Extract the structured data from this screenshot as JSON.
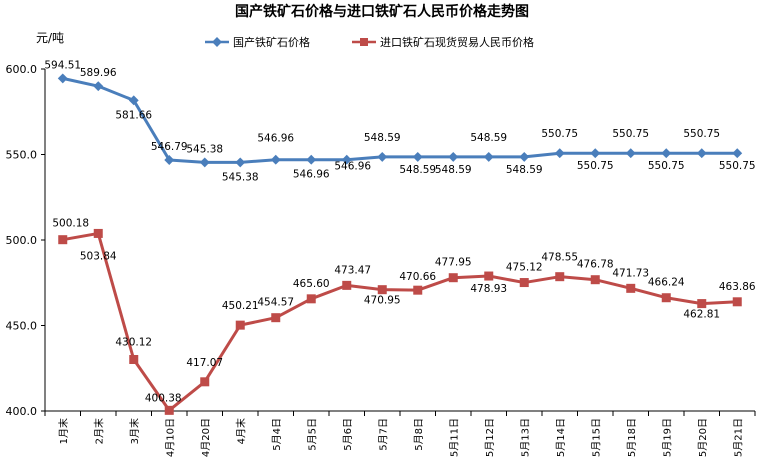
{
  "chart_data": {
    "type": "line",
    "title": "国产铁矿石价格与进口铁矿石人民币价格走势图",
    "ylabel": "元/吨",
    "ylim": [
      400,
      600
    ],
    "yticks": [
      "400.0",
      "450.0",
      "500.0",
      "550.0",
      "600.0"
    ],
    "grid": false,
    "legend_position": "top",
    "categories": [
      "1月末",
      "2月末",
      "3月末",
      "4月10日",
      "4月20日",
      "4月末",
      "5月4日",
      "5月5日",
      "5月6日",
      "5月7日",
      "5月8日",
      "5月11日",
      "5月12日",
      "5月13日",
      "5月14日",
      "5月15日",
      "5月18日",
      "5月19日",
      "5月20日",
      "5月21日"
    ],
    "series": [
      {
        "name": "国产铁矿石价格",
        "color": "#4a7ebb",
        "marker": "diamond",
        "values": [
          594.51,
          589.96,
          581.66,
          546.79,
          545.38,
          545.38,
          546.96,
          546.96,
          546.96,
          548.59,
          548.59,
          548.59,
          548.59,
          548.59,
          550.75,
          550.75,
          550.75,
          550.75,
          550.75,
          550.75
        ],
        "labels": [
          "594.51",
          "589.96",
          "581.66",
          "546.79",
          "545.38",
          "545.38",
          "546.96",
          "546.96",
          "546.96",
          "548.59",
          "548.59",
          "548.59",
          "548.59",
          "548.59",
          "550.75",
          "550.75",
          "550.75",
          "550.75",
          "550.75",
          "550.75"
        ]
      },
      {
        "name": "进口铁矿石现货贸易人民币价格",
        "color": "#be4b48",
        "marker": "square",
        "values": [
          500.18,
          503.84,
          430.12,
          400.38,
          417.07,
          450.21,
          454.57,
          465.6,
          473.47,
          470.95,
          470.66,
          477.95,
          478.93,
          475.12,
          478.55,
          476.78,
          471.73,
          466.24,
          462.81,
          463.86
        ],
        "labels": [
          "500.18",
          "503.84",
          "430.12",
          "400.38",
          "417.07",
          "450.21",
          "454.57",
          "465.60",
          "473.47",
          "470.95",
          "470.66",
          "477.95",
          "478.93",
          "475.12",
          "478.55",
          "476.78",
          "471.73",
          "466.24",
          "462.81",
          "463.86"
        ]
      }
    ]
  }
}
